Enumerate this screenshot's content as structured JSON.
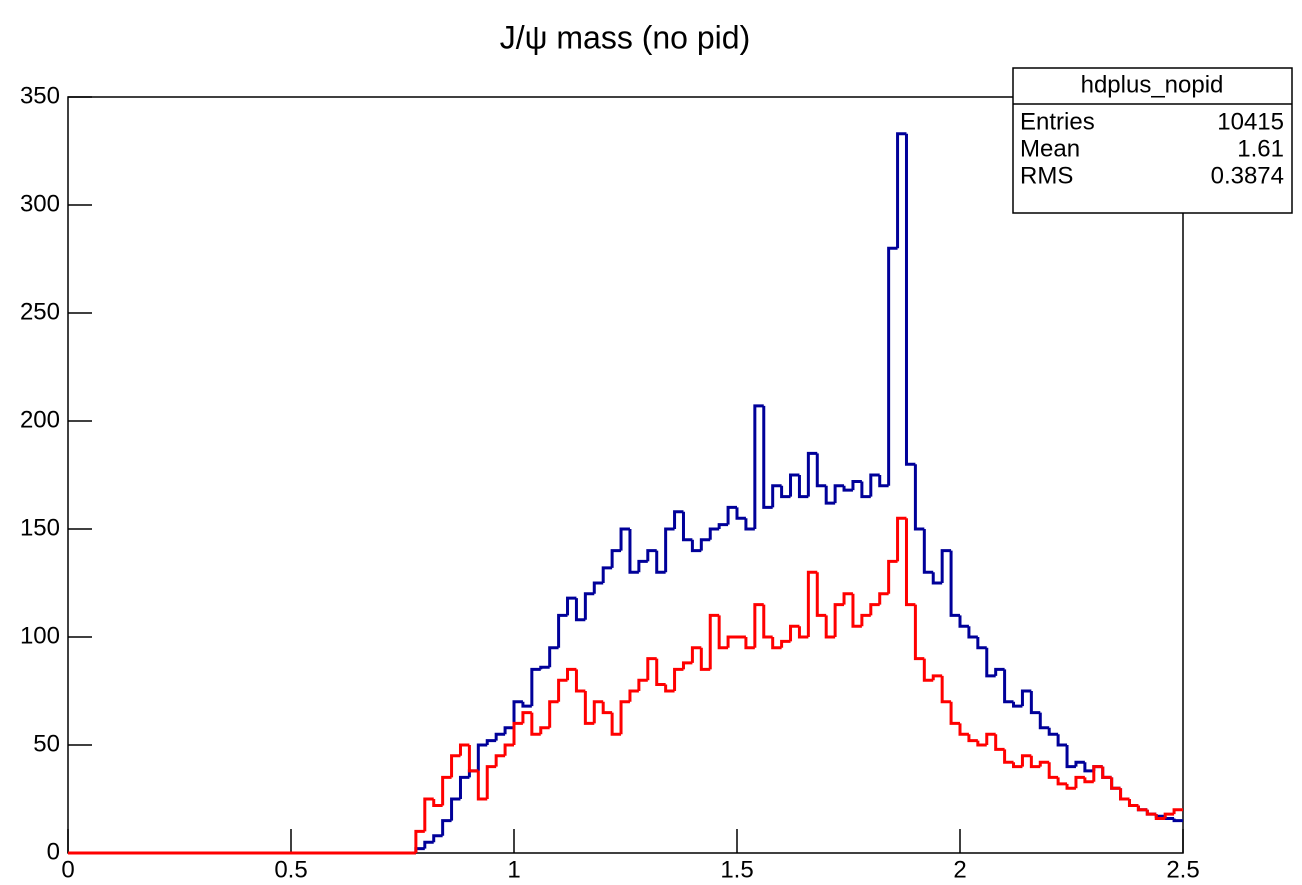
{
  "chart_data": {
    "type": "histogram",
    "title": "J/ψ mass (no pid)",
    "bins": [
      0,
      0.78,
      0.8,
      0.82,
      0.84,
      0.86,
      0.88,
      0.9,
      0.92,
      0.94,
      0.96,
      0.98,
      1,
      1.02,
      1.04,
      1.06,
      1.08,
      1.1,
      1.12,
      1.14,
      1.16,
      1.18,
      1.2,
      1.22,
      1.24,
      1.26,
      1.28,
      1.3,
      1.32,
      1.34,
      1.36,
      1.38,
      1.4,
      1.42,
      1.44,
      1.46,
      1.48,
      1.5,
      1.52,
      1.54,
      1.56,
      1.58,
      1.6,
      1.62,
      1.64,
      1.66,
      1.68,
      1.7,
      1.72,
      1.74,
      1.76,
      1.78,
      1.8,
      1.82,
      1.84,
      1.86,
      1.88,
      1.9,
      1.92,
      1.94,
      1.96,
      1.98,
      2,
      2.02,
      2.04,
      2.06,
      2.08,
      2.1,
      2.12,
      2.14,
      2.16,
      2.18,
      2.2,
      2.22,
      2.24,
      2.26,
      2.28,
      2.3,
      2.32,
      2.34,
      2.36,
      2.38,
      2.4,
      2.42,
      2.44,
      2.46,
      2.48,
      2.5
    ],
    "series": [
      {
        "color": "#000099",
        "values": [
          0,
          2,
          5,
          8,
          15,
          25,
          35,
          38,
          50,
          52,
          55,
          58,
          70,
          68,
          85,
          86,
          95,
          110,
          118,
          108,
          120,
          125,
          132,
          140,
          150,
          130,
          135,
          140,
          130,
          150,
          158,
          145,
          140,
          145,
          150,
          152,
          160,
          155,
          150,
          207,
          160,
          170,
          165,
          175,
          165,
          185,
          170,
          162,
          170,
          168,
          172,
          165,
          175,
          170,
          280,
          333,
          180,
          150,
          130,
          125,
          140,
          110,
          105,
          100,
          95,
          82,
          85,
          70,
          68,
          75,
          65,
          58,
          55,
          50,
          40,
          42,
          38,
          40,
          35,
          30,
          25,
          22,
          20,
          18,
          17,
          16,
          15
        ]
      },
      {
        "color": "#ff0000",
        "values": [
          0,
          10,
          25,
          22,
          35,
          45,
          50,
          38,
          25,
          40,
          45,
          50,
          60,
          65,
          55,
          58,
          70,
          80,
          85,
          75,
          60,
          70,
          65,
          55,
          70,
          75,
          80,
          90,
          78,
          75,
          85,
          88,
          95,
          85,
          110,
          95,
          100,
          100,
          95,
          115,
          100,
          95,
          98,
          105,
          100,
          130,
          110,
          100,
          115,
          120,
          105,
          110,
          115,
          120,
          135,
          155,
          115,
          90,
          80,
          82,
          70,
          60,
          55,
          52,
          50,
          55,
          48,
          42,
          40,
          45,
          40,
          42,
          35,
          32,
          30,
          35,
          33,
          40,
          35,
          30,
          25,
          22,
          20,
          18,
          16,
          18,
          20
        ]
      }
    ],
    "xlim": [
      0,
      2.5
    ],
    "xticks": [
      0,
      0.5,
      1,
      1.5,
      2,
      2.5
    ],
    "ylim": [
      0,
      350
    ],
    "yticks": [
      0,
      50,
      100,
      150,
      200,
      250,
      300,
      350
    ],
    "stats": {
      "name": "hdplus_nopid",
      "rows": [
        [
          "Entries",
          10415
        ],
        [
          "Mean",
          1.61
        ],
        [
          "RMS",
          0.3874
        ]
      ]
    }
  }
}
